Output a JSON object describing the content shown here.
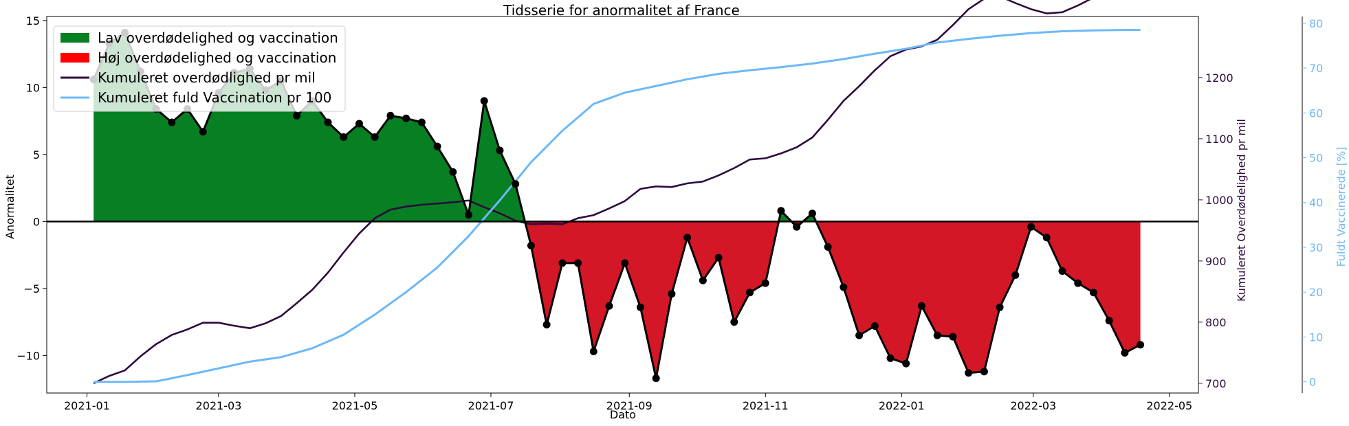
{
  "chart_data": {
    "type": "area",
    "title": "Tidsserie for anormalitet af France",
    "xlabel": "Dato",
    "ylabel_left": "Anormalitet",
    "ylabel_right1": "Kumuleret Overdødelighed pr mil",
    "ylabel_right2": "Fuldt Vaccinerede [%]",
    "x_ticks": [
      "2021-01",
      "2021-03",
      "2021-05",
      "2021-07",
      "2021-09",
      "2021-11",
      "2022-01",
      "2022-03",
      "2022-05"
    ],
    "y_left_ticks": [
      -10,
      -5,
      0,
      5,
      10,
      15
    ],
    "y_right1_ticks": [
      700,
      800,
      900,
      1000,
      1100,
      1200
    ],
    "y_right2_ticks": [
      0,
      10,
      20,
      30,
      40,
      50,
      60,
      70,
      80
    ],
    "ylim_left": [
      -12.8,
      15.3
    ],
    "ylim_right1": [
      684,
      1300
    ],
    "ylim_right2": [
      -2.5,
      81.5
    ],
    "xlim": [
      "2020-12-14",
      "2022-05-14"
    ],
    "legend_position": "top-left",
    "colors": {
      "positive_fill": "#077f23",
      "negative_fill": "#d31726",
      "anomaly_line": "#000000",
      "cumulative_excess": "#2e0a3e",
      "vaccination": "#6cb8f8"
    },
    "legend": [
      {
        "label": "Lav overdødelighed og vaccination",
        "kind": "patch",
        "color": "#077f23"
      },
      {
        "label": "Høj overdødelighed og vaccination",
        "kind": "patch",
        "color": "#ff0000"
      },
      {
        "label": "Kumuleret overdødlighed pr mil",
        "kind": "line",
        "color": "#2e0a3e"
      },
      {
        "label": "Kumuleret fuld Vaccination pr 100",
        "kind": "line",
        "color": "#6cb8f8"
      }
    ],
    "series": [
      {
        "name": "Anormalitet",
        "axis": "left",
        "dates": [
          "2021-01-04",
          "2021-01-11",
          "2021-01-18",
          "2021-01-25",
          "2021-02-01",
          "2021-02-08",
          "2021-02-15",
          "2021-02-22",
          "2021-03-01",
          "2021-03-08",
          "2021-03-15",
          "2021-03-22",
          "2021-03-29",
          "2021-04-05",
          "2021-04-12",
          "2021-04-19",
          "2021-04-26",
          "2021-05-03",
          "2021-05-10",
          "2021-05-17",
          "2021-05-24",
          "2021-05-31",
          "2021-06-07",
          "2021-06-14",
          "2021-06-21",
          "2021-06-28",
          "2021-07-05",
          "2021-07-12",
          "2021-07-19",
          "2021-07-26",
          "2021-08-02",
          "2021-08-09",
          "2021-08-16",
          "2021-08-23",
          "2021-08-30",
          "2021-09-06",
          "2021-09-13",
          "2021-09-20",
          "2021-09-27",
          "2021-10-04",
          "2021-10-11",
          "2021-10-18",
          "2021-10-25",
          "2021-11-01",
          "2021-11-08",
          "2021-11-15",
          "2021-11-22",
          "2021-11-29",
          "2021-12-06",
          "2021-12-13",
          "2021-12-20",
          "2021-12-27",
          "2022-01-03",
          "2022-01-10",
          "2022-01-17",
          "2022-01-24",
          "2022-01-31",
          "2022-02-07",
          "2022-02-14",
          "2022-02-21",
          "2022-02-28",
          "2022-03-07",
          "2022-03-14",
          "2022-03-21",
          "2022-03-28",
          "2022-04-04",
          "2022-04-11",
          "2022-04-18"
        ],
        "values": [
          10.6,
          13.3,
          14.1,
          11.2,
          8.4,
          7.4,
          8.4,
          6.7,
          9.6,
          11.1,
          11.4,
          9.8,
          10.5,
          7.9,
          9.0,
          7.4,
          6.3,
          7.3,
          6.3,
          7.9,
          7.7,
          7.4,
          5.6,
          3.7,
          0.5,
          9.0,
          5.3,
          2.8,
          -1.8,
          -7.7,
          -3.1,
          -3.1,
          -9.7,
          -6.3,
          -3.1,
          -6.4,
          -11.7,
          -5.4,
          -1.2,
          -4.4,
          -2.7,
          -7.5,
          -5.3,
          -4.6,
          0.8,
          -0.4,
          0.6,
          -1.9,
          -4.9,
          -8.5,
          -7.8,
          -10.2,
          -10.6,
          -6.3,
          -8.5,
          -8.6,
          -11.3,
          -11.2,
          -6.4,
          -4.0,
          -0.4,
          -1.2,
          -3.7,
          -4.6,
          -5.3,
          -7.4,
          -9.8,
          -9.2
        ]
      },
      {
        "name": "Kumuleret overdødlighed pr mil",
        "axis": "right1",
        "dates": [
          "2021-01-04",
          "2021-01-11",
          "2021-01-18",
          "2021-01-25",
          "2021-02-01",
          "2021-02-08",
          "2021-02-15",
          "2021-02-22",
          "2021-03-01",
          "2021-03-08",
          "2021-03-15",
          "2021-03-22",
          "2021-03-29",
          "2021-04-05",
          "2021-04-12",
          "2021-04-19",
          "2021-04-26",
          "2021-05-03",
          "2021-05-10",
          "2021-05-17",
          "2021-05-24",
          "2021-05-31",
          "2021-06-07",
          "2021-06-14",
          "2021-06-21",
          "2021-06-28",
          "2021-07-05",
          "2021-07-12",
          "2021-07-19",
          "2021-07-26",
          "2021-08-02",
          "2021-08-09",
          "2021-08-16",
          "2021-08-23",
          "2021-08-30",
          "2021-09-06",
          "2021-09-13",
          "2021-09-20",
          "2021-09-27",
          "2021-10-04",
          "2021-10-11",
          "2021-10-18",
          "2021-10-25",
          "2021-11-01",
          "2021-11-08",
          "2021-11-15",
          "2021-11-22",
          "2021-11-29",
          "2021-12-06",
          "2021-12-13",
          "2021-12-20",
          "2021-12-27",
          "2022-01-03",
          "2022-01-10",
          "2022-01-17",
          "2022-01-24",
          "2022-01-31",
          "2022-02-07",
          "2022-02-14",
          "2022-02-21",
          "2022-02-28",
          "2022-03-07",
          "2022-03-14",
          "2022-03-21",
          "2022-03-28",
          "2022-04-04",
          "2022-04-11",
          "2022-04-18"
        ],
        "values": [
          700,
          712,
          721,
          744,
          764,
          779,
          788,
          799,
          799,
          794,
          790,
          798,
          810,
          831,
          853,
          881,
          914,
          945,
          970,
          984,
          989,
          992,
          994,
          996,
          999,
          988,
          978,
          966,
          960,
          961,
          960,
          970,
          975,
          986,
          998,
          1018,
          1022,
          1021,
          1027,
          1030,
          1040,
          1052,
          1066,
          1068,
          1076,
          1086,
          1102,
          1131,
          1162,
          1186,
          1212,
          1235,
          1246,
          1251,
          1262,
          1286,
          1312,
          1329,
          1333,
          1322,
          1312,
          1305,
          1307,
          1318,
          1331,
          1342,
          1350,
          1357
        ]
      },
      {
        "name": "Kumuleret fuld Vaccination pr 100",
        "axis": "right2",
        "dates": [
          "2021-01-04",
          "2021-01-18",
          "2021-02-01",
          "2021-02-15",
          "2021-03-01",
          "2021-03-15",
          "2021-03-29",
          "2021-04-12",
          "2021-04-26",
          "2021-05-10",
          "2021-05-24",
          "2021-06-07",
          "2021-06-21",
          "2021-07-05",
          "2021-07-19",
          "2021-08-02",
          "2021-08-16",
          "2021-08-30",
          "2021-09-13",
          "2021-09-27",
          "2021-10-11",
          "2021-10-25",
          "2021-11-08",
          "2021-11-22",
          "2021-12-06",
          "2021-12-20",
          "2022-01-03",
          "2022-01-17",
          "2022-01-31",
          "2022-02-14",
          "2022-02-28",
          "2022-03-14",
          "2022-03-28",
          "2022-04-11",
          "2022-04-18"
        ],
        "values": [
          0.0,
          0.0,
          0.1,
          1.5,
          3.0,
          4.5,
          5.5,
          7.5,
          10.5,
          15.0,
          20.0,
          25.5,
          32.5,
          40.5,
          49.0,
          56.0,
          62.0,
          64.5,
          66.0,
          67.5,
          68.7,
          69.5,
          70.2,
          71.0,
          72.0,
          73.2,
          74.3,
          75.7,
          76.5,
          77.2,
          77.8,
          78.2,
          78.4,
          78.5,
          78.5
        ]
      }
    ]
  }
}
